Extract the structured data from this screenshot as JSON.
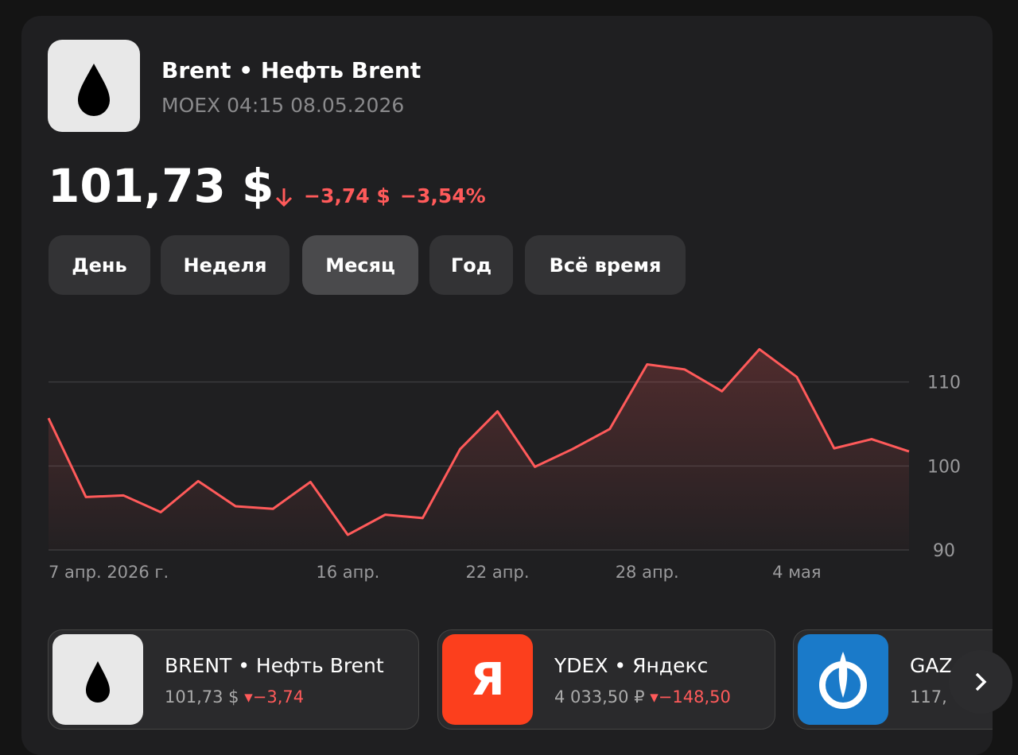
{
  "header": {
    "title": "Brent • Нефть Brent",
    "exchange_time": "MOEX 04:15 08.05.2026"
  },
  "quote": {
    "price": "101,73 $",
    "change": "−3,74 $",
    "change_percent": "−3,54%"
  },
  "tabs": {
    "items": [
      "День",
      "Неделя",
      "Месяц",
      "Год",
      "Всё время"
    ],
    "active": 2
  },
  "chart_data": {
    "type": "line",
    "categories": [
      "7 апр. 2026 г.",
      null,
      null,
      null,
      null,
      null,
      null,
      null,
      "16 апр.",
      null,
      null,
      null,
      "22 апр.",
      null,
      null,
      null,
      "28 апр.",
      null,
      null,
      null,
      "4 мая",
      null,
      null,
      null
    ],
    "series": [
      {
        "name": "Brent",
        "color": "#ff5a5a",
        "values": [
          105.7,
          96.3,
          96.5,
          94.5,
          98.2,
          95.2,
          94.9,
          98.1,
          91.8,
          94.2,
          93.8,
          102.0,
          106.5,
          99.9,
          102.0,
          104.4,
          112.1,
          111.5,
          108.9,
          113.9,
          110.6,
          102.1,
          103.2,
          101.73
        ]
      }
    ],
    "ylim": [
      90,
      120
    ],
    "yticks": [
      90,
      100,
      110
    ],
    "grid": true
  },
  "tickers": [
    {
      "name": "BRENT • Нефть Brent",
      "price": "101,73 $",
      "change": "−3,74"
    },
    {
      "logo_text": "Я",
      "name": "YDEX • Яндекс",
      "price": "4 033,50 ₽",
      "change": "−148,50"
    },
    {
      "name": "GAZ",
      "price": "117,"
    }
  ]
}
